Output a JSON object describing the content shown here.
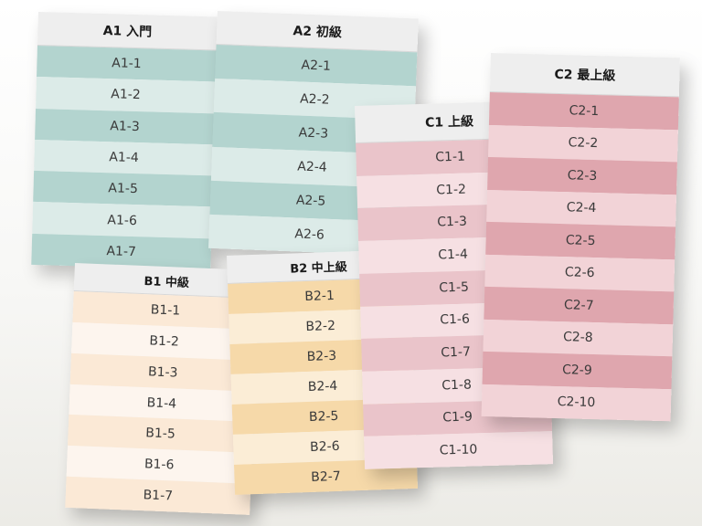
{
  "colors": {
    "a_dark": "#b3d4cf",
    "a_light": "#dcebe8",
    "b_dark": "#fbe9d6",
    "b_light": "#fdf5ee",
    "b2_dark": "#f6d9a9",
    "b2_light": "#fbedd6",
    "c1_dark": "#eac4ca",
    "c1_light": "#f6e0e3",
    "c2_dark": "#dfa6ae",
    "c2_light": "#f2d3d7"
  },
  "cards": {
    "a1": {
      "title": "A1 入門",
      "rows": [
        "A1-1",
        "A1-2",
        "A1-3",
        "A1-4",
        "A1-5",
        "A1-6",
        "A1-7"
      ]
    },
    "a2": {
      "title": "A2 初級",
      "rows": [
        "A2-1",
        "A2-2",
        "A2-3",
        "A2-4",
        "A2-5",
        "A2-6"
      ]
    },
    "b1": {
      "title": "B1 中級",
      "rows": [
        "B1-1",
        "B1-2",
        "B1-3",
        "B1-4",
        "B1-5",
        "B1-6",
        "B1-7"
      ]
    },
    "b2": {
      "title": "B2 中上級",
      "rows": [
        "B2-1",
        "B2-2",
        "B2-3",
        "B2-4",
        "B2-5",
        "B2-6",
        "B2-7"
      ]
    },
    "c1": {
      "title": "C1 上級",
      "rows": [
        "C1-1",
        "C1-2",
        "C1-3",
        "C1-4",
        "C1-5",
        "C1-6",
        "C1-7",
        "C1-8",
        "C1-9",
        "C1-10"
      ]
    },
    "c2": {
      "title": "C2 最上級",
      "rows": [
        "C2-1",
        "C2-2",
        "C2-3",
        "C2-4",
        "C2-5",
        "C2-6",
        "C2-7",
        "C2-8",
        "C2-9",
        "C2-10"
      ]
    }
  }
}
